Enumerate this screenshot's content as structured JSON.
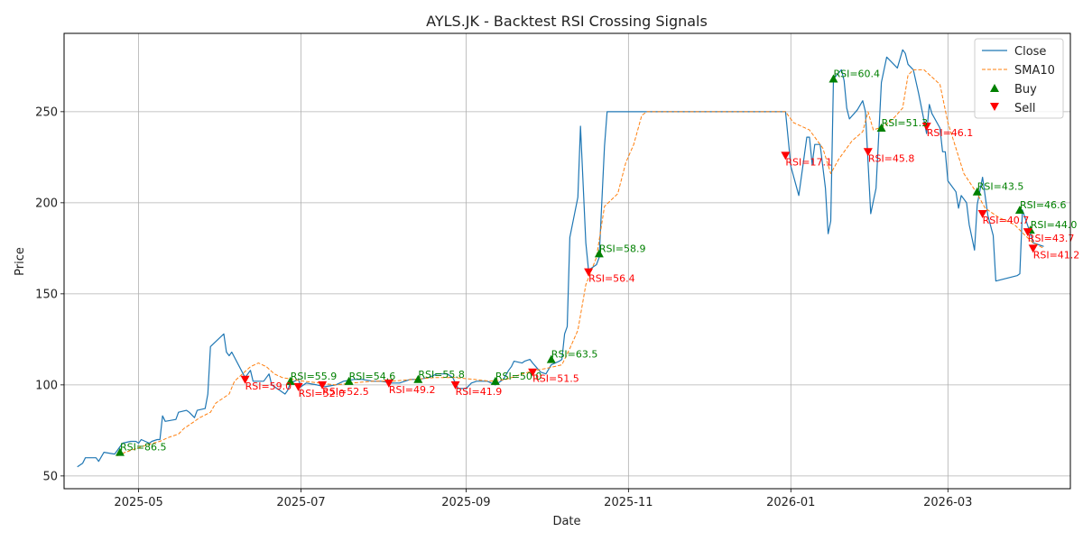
{
  "chart_data": {
    "type": "line",
    "title": "AYLS.JK - Backtest RSI Crossing Signals",
    "xlabel": "Date",
    "ylabel": "Price",
    "xlim": [
      "2025-04-03",
      "2026-04-16"
    ],
    "ylim": [
      43,
      293
    ],
    "grid": true,
    "legend_position": "top-right",
    "x_ticks": [
      "2025-05",
      "2025-07",
      "2025-09",
      "2025-11",
      "2026-01",
      "2026-03"
    ],
    "x_tick_dates": [
      "2025-05-01",
      "2025-07-01",
      "2025-09-01",
      "2025-11-01",
      "2026-01-01",
      "2026-03-01"
    ],
    "y_ticks": [
      50,
      100,
      150,
      200,
      250
    ],
    "colors": {
      "close": "#1f77b4",
      "sma": "#ff7f0e",
      "buy": "#008000",
      "sell": "#ff0000"
    },
    "legend": [
      "Close",
      "SMA10",
      "Buy",
      "Sell"
    ],
    "series": [
      {
        "name": "Close",
        "points": [
          [
            "2025-04-08",
            55
          ],
          [
            "2025-04-10",
            57
          ],
          [
            "2025-04-11",
            60
          ],
          [
            "2025-04-15",
            60
          ],
          [
            "2025-04-16",
            58
          ],
          [
            "2025-04-18",
            63
          ],
          [
            "2025-04-22",
            62
          ],
          [
            "2025-04-24",
            66
          ],
          [
            "2025-04-25",
            68
          ],
          [
            "2025-04-28",
            69
          ],
          [
            "2025-04-30",
            69
          ],
          [
            "2025-05-01",
            68
          ],
          [
            "2025-05-02",
            70
          ],
          [
            "2025-05-05",
            68
          ],
          [
            "2025-05-06",
            69
          ],
          [
            "2025-05-08",
            70
          ],
          [
            "2025-05-09",
            70
          ],
          [
            "2025-05-10",
            83
          ],
          [
            "2025-05-11",
            80
          ],
          [
            "2025-05-15",
            81
          ],
          [
            "2025-05-16",
            85
          ],
          [
            "2025-05-19",
            86
          ],
          [
            "2025-05-20",
            85
          ],
          [
            "2025-05-22",
            82
          ],
          [
            "2025-05-23",
            86
          ],
          [
            "2025-05-26",
            87
          ],
          [
            "2025-05-27",
            95
          ],
          [
            "2025-05-28",
            121
          ],
          [
            "2025-06-02",
            128
          ],
          [
            "2025-06-03",
            118
          ],
          [
            "2025-06-04",
            116
          ],
          [
            "2025-06-05",
            118
          ],
          [
            "2025-06-10",
            104
          ],
          [
            "2025-06-12",
            108
          ],
          [
            "2025-06-13",
            102
          ],
          [
            "2025-06-17",
            102
          ],
          [
            "2025-06-19",
            106
          ],
          [
            "2025-06-20",
            100
          ],
          [
            "2025-06-23",
            97
          ],
          [
            "2025-06-25",
            95
          ],
          [
            "2025-06-26",
            97
          ],
          [
            "2025-06-27",
            101
          ],
          [
            "2025-06-30",
            103
          ],
          [
            "2025-07-01",
            99
          ],
          [
            "2025-07-03",
            101
          ],
          [
            "2025-07-07",
            100
          ],
          [
            "2025-07-10",
            99
          ],
          [
            "2025-07-14",
            100
          ],
          [
            "2025-07-17",
            102
          ],
          [
            "2025-07-21",
            103
          ],
          [
            "2025-07-24",
            103
          ],
          [
            "2025-07-28",
            102
          ],
          [
            "2025-07-31",
            102
          ],
          [
            "2025-08-04",
            101
          ],
          [
            "2025-08-07",
            101
          ],
          [
            "2025-08-11",
            103
          ],
          [
            "2025-08-14",
            103
          ],
          [
            "2025-08-18",
            104
          ],
          [
            "2025-08-21",
            106
          ],
          [
            "2025-08-25",
            106
          ],
          [
            "2025-08-27",
            104
          ],
          [
            "2025-08-29",
            98
          ],
          [
            "2025-09-01",
            98
          ],
          [
            "2025-09-03",
            101
          ],
          [
            "2025-09-05",
            102
          ],
          [
            "2025-09-09",
            102
          ],
          [
            "2025-09-12",
            100
          ],
          [
            "2025-09-15",
            103
          ],
          [
            "2025-09-17",
            108
          ],
          [
            "2025-09-18",
            110
          ],
          [
            "2025-09-19",
            113
          ],
          [
            "2025-09-22",
            112
          ],
          [
            "2025-09-23",
            113
          ],
          [
            "2025-09-25",
            114
          ],
          [
            "2025-09-26",
            112
          ],
          [
            "2025-09-29",
            107
          ],
          [
            "2025-10-01",
            106
          ],
          [
            "2025-10-03",
            111
          ],
          [
            "2025-10-06",
            113
          ],
          [
            "2025-10-07",
            114
          ],
          [
            "2025-10-08",
            128
          ],
          [
            "2025-10-09",
            132
          ],
          [
            "2025-10-10",
            181
          ],
          [
            "2025-10-13",
            203
          ],
          [
            "2025-10-14",
            242
          ],
          [
            "2025-10-16",
            178
          ],
          [
            "2025-10-17",
            163
          ],
          [
            "2025-10-20",
            166
          ],
          [
            "2025-10-21",
            170
          ],
          [
            "2025-10-23",
            231
          ],
          [
            "2025-10-24",
            250
          ],
          [
            "2025-12-30",
            250
          ],
          [
            "2026-01-01",
            220
          ],
          [
            "2026-01-04",
            204
          ],
          [
            "2026-01-07",
            236
          ],
          [
            "2026-01-08",
            236
          ],
          [
            "2026-01-09",
            221
          ],
          [
            "2026-01-10",
            232
          ],
          [
            "2026-01-12",
            232
          ],
          [
            "2026-01-14",
            208
          ],
          [
            "2026-01-15",
            183
          ],
          [
            "2026-01-16",
            190
          ],
          [
            "2026-01-17",
            268
          ],
          [
            "2026-01-20",
            273
          ],
          [
            "2026-01-21",
            267
          ],
          [
            "2026-01-22",
            252
          ],
          [
            "2026-01-23",
            246
          ],
          [
            "2026-01-26",
            251
          ],
          [
            "2026-01-28",
            256
          ],
          [
            "2026-01-29",
            250
          ],
          [
            "2026-01-31",
            194
          ],
          [
            "2026-02-02",
            208
          ],
          [
            "2026-02-04",
            266
          ],
          [
            "2026-02-06",
            280
          ],
          [
            "2026-02-10",
            274
          ],
          [
            "2026-02-12",
            284
          ],
          [
            "2026-02-13",
            282
          ],
          [
            "2026-02-14",
            276
          ],
          [
            "2026-02-16",
            273
          ],
          [
            "2026-02-18",
            260
          ],
          [
            "2026-02-21",
            238
          ],
          [
            "2026-02-22",
            254
          ],
          [
            "2026-02-23",
            249
          ],
          [
            "2026-02-26",
            241
          ],
          [
            "2026-02-27",
            228
          ],
          [
            "2026-02-28",
            228
          ],
          [
            "2026-03-01",
            212
          ],
          [
            "2026-03-04",
            206
          ],
          [
            "2026-03-05",
            197
          ],
          [
            "2026-03-06",
            204
          ],
          [
            "2026-03-08",
            200
          ],
          [
            "2026-03-09",
            188
          ],
          [
            "2026-03-11",
            174
          ],
          [
            "2026-03-12",
            199
          ],
          [
            "2026-03-14",
            214
          ],
          [
            "2026-03-16",
            193
          ],
          [
            "2026-03-18",
            182
          ],
          [
            "2026-03-19",
            157
          ],
          [
            "2026-03-27",
            160
          ],
          [
            "2026-03-28",
            161
          ],
          [
            "2026-03-29",
            196
          ],
          [
            "2026-04-01",
            183
          ],
          [
            "2026-04-02",
            178
          ],
          [
            "2026-04-06",
            176
          ]
        ]
      },
      {
        "name": "SMA10",
        "points": [
          [
            "2025-04-23",
            61
          ],
          [
            "2025-04-26",
            63
          ],
          [
            "2025-04-30",
            65
          ],
          [
            "2025-05-04",
            67
          ],
          [
            "2025-05-09",
            69
          ],
          [
            "2025-05-12",
            71
          ],
          [
            "2025-05-16",
            73
          ],
          [
            "2025-05-18",
            76
          ],
          [
            "2025-05-21",
            79
          ],
          [
            "2025-05-24",
            82
          ],
          [
            "2025-05-28",
            85
          ],
          [
            "2025-05-30",
            90
          ],
          [
            "2025-06-04",
            95
          ],
          [
            "2025-06-06",
            102
          ],
          [
            "2025-06-09",
            106
          ],
          [
            "2025-06-12",
            110
          ],
          [
            "2025-06-15",
            112
          ],
          [
            "2025-06-18",
            110
          ],
          [
            "2025-06-21",
            106
          ],
          [
            "2025-06-24",
            104
          ],
          [
            "2025-06-28",
            103
          ],
          [
            "2025-07-02",
            102
          ],
          [
            "2025-07-08",
            101
          ],
          [
            "2025-07-14",
            100
          ],
          [
            "2025-07-20",
            101
          ],
          [
            "2025-07-28",
            102
          ],
          [
            "2025-08-04",
            102
          ],
          [
            "2025-08-12",
            103
          ],
          [
            "2025-08-20",
            104
          ],
          [
            "2025-08-28",
            104
          ],
          [
            "2025-09-04",
            103
          ],
          [
            "2025-09-10",
            102
          ],
          [
            "2025-09-16",
            103
          ],
          [
            "2025-09-22",
            106
          ],
          [
            "2025-09-27",
            108
          ],
          [
            "2025-10-01",
            109
          ],
          [
            "2025-10-07",
            111
          ],
          [
            "2025-10-10",
            120
          ],
          [
            "2025-10-13",
            130
          ],
          [
            "2025-10-16",
            155
          ],
          [
            "2025-10-20",
            170
          ],
          [
            "2025-10-23",
            198
          ],
          [
            "2025-10-28",
            205
          ],
          [
            "2025-10-31",
            222
          ],
          [
            "2025-11-03",
            232
          ],
          [
            "2025-11-06",
            248
          ],
          [
            "2025-11-08",
            250
          ],
          [
            "2025-12-30",
            250
          ],
          [
            "2026-01-02",
            244
          ],
          [
            "2026-01-08",
            240
          ],
          [
            "2026-01-13",
            230
          ],
          [
            "2026-01-16",
            216
          ],
          [
            "2026-01-19",
            224
          ],
          [
            "2026-01-24",
            234
          ],
          [
            "2026-01-28",
            239
          ],
          [
            "2026-01-30",
            250
          ],
          [
            "2026-02-01",
            240
          ],
          [
            "2026-02-05",
            242
          ],
          [
            "2026-02-09",
            247
          ],
          [
            "2026-02-12",
            252
          ],
          [
            "2026-02-14",
            270
          ],
          [
            "2026-02-16",
            273
          ],
          [
            "2026-02-20",
            273
          ],
          [
            "2026-02-26",
            265
          ],
          [
            "2026-03-01",
            244
          ],
          [
            "2026-03-04",
            230
          ],
          [
            "2026-03-07",
            216
          ],
          [
            "2026-03-12",
            205
          ],
          [
            "2026-03-15",
            197
          ],
          [
            "2026-03-20",
            192
          ],
          [
            "2026-03-26",
            188
          ],
          [
            "2026-03-30",
            182
          ],
          [
            "2026-04-02",
            178
          ],
          [
            "2026-04-06",
            175
          ]
        ]
      }
    ],
    "buy_signals": [
      {
        "date": "2025-04-24",
        "price": 63,
        "label": "RSI=86.5"
      },
      {
        "date": "2025-06-27",
        "price": 102,
        "label": "RSI=55.9"
      },
      {
        "date": "2025-07-19",
        "price": 102,
        "label": "RSI=54.6"
      },
      {
        "date": "2025-08-14",
        "price": 103,
        "label": "RSI=55.8"
      },
      {
        "date": "2025-09-12",
        "price": 102,
        "label": "RSI=50.0"
      },
      {
        "date": "2025-10-03",
        "price": 114,
        "label": "RSI=63.5"
      },
      {
        "date": "2025-10-21",
        "price": 172,
        "label": "RSI=58.9"
      },
      {
        "date": "2026-01-17",
        "price": 268,
        "label": "RSI=60.4"
      },
      {
        "date": "2026-02-04",
        "price": 241,
        "label": "RSI=51.3"
      },
      {
        "date": "2026-03-12",
        "price": 206,
        "label": "RSI=43.5"
      },
      {
        "date": "2026-03-28",
        "price": 196,
        "label": "RSI=46.6"
      },
      {
        "date": "2026-04-01",
        "price": 185,
        "label": "RSI=44.0"
      }
    ],
    "sell_signals": [
      {
        "date": "2025-06-10",
        "price": 103,
        "label": "RSI=59.0"
      },
      {
        "date": "2025-06-30",
        "price": 99,
        "label": "RSI=52.0"
      },
      {
        "date": "2025-07-09",
        "price": 100,
        "label": "RSI=52.5"
      },
      {
        "date": "2025-08-03",
        "price": 101,
        "label": "RSI=49.2"
      },
      {
        "date": "2025-08-28",
        "price": 100,
        "label": "RSI=41.9"
      },
      {
        "date": "2025-09-26",
        "price": 107,
        "label": "RSI=51.5"
      },
      {
        "date": "2025-10-17",
        "price": 162,
        "label": "RSI=56.4"
      },
      {
        "date": "2025-12-30",
        "price": 226,
        "label": "RSI=17.1"
      },
      {
        "date": "2026-01-30",
        "price": 228,
        "label": "RSI=45.8"
      },
      {
        "date": "2026-02-21",
        "price": 242,
        "label": "RSI=46.1"
      },
      {
        "date": "2026-03-14",
        "price": 194,
        "label": "RSI=40.7"
      },
      {
        "date": "2026-03-31",
        "price": 184,
        "label": "RSI=43.7"
      },
      {
        "date": "2026-04-02",
        "price": 175,
        "label": "RSI=41.2"
      }
    ]
  }
}
